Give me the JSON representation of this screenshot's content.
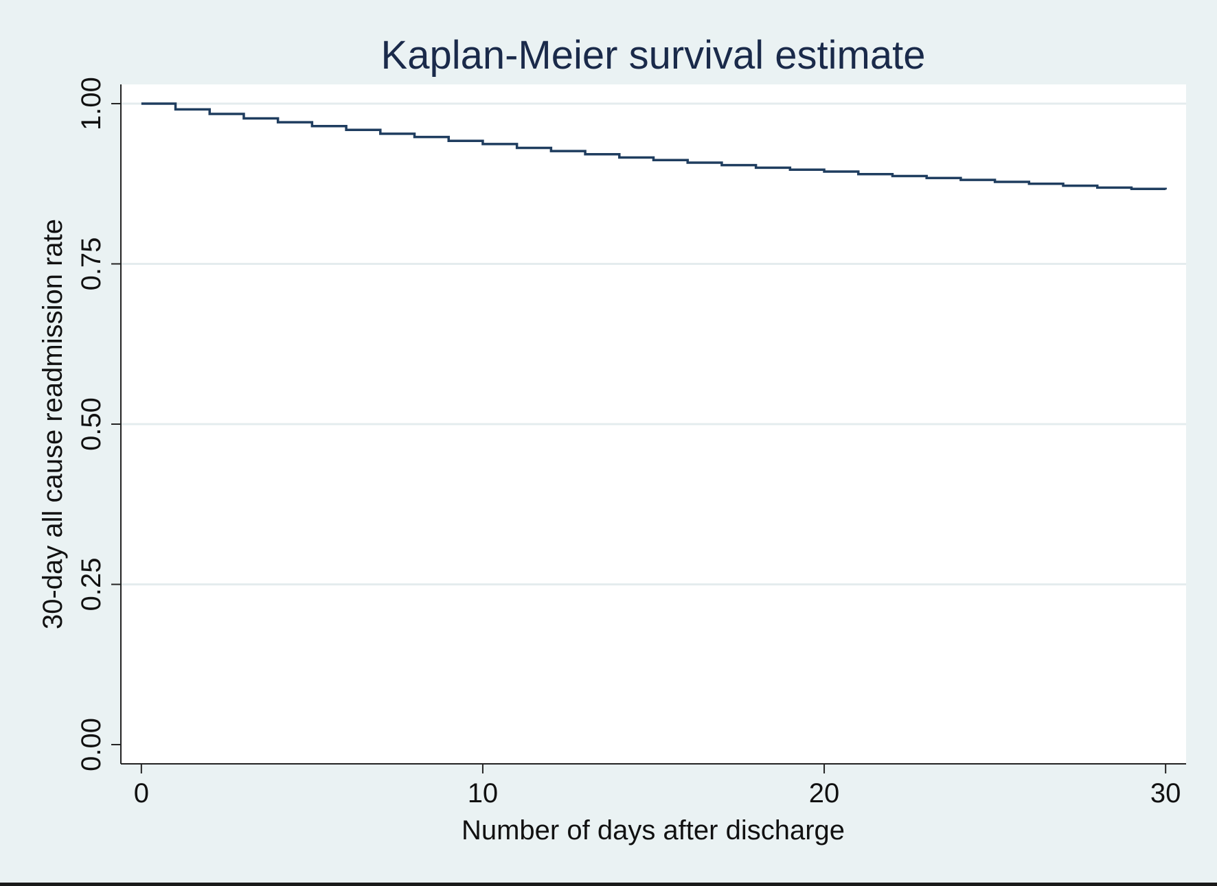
{
  "chart_data": {
    "type": "line",
    "title": "Kaplan-Meier survival estimate",
    "xlabel": "Number of days after discharge",
    "ylabel": "30-day all cause readmission rate",
    "xlim": [
      -0.6,
      30.6
    ],
    "ylim": [
      -0.03,
      1.03
    ],
    "xticks": [
      0,
      10,
      20,
      30
    ],
    "xtick_labels": [
      "0",
      "10",
      "20",
      "30"
    ],
    "yticks": [
      0,
      0.25,
      0.5,
      0.75,
      1.0
    ],
    "ytick_labels": [
      "0.00",
      "0.25",
      "0.50",
      "0.75",
      "1.00"
    ],
    "grid": "horizontal",
    "legend": "none",
    "step": "post",
    "series": [
      {
        "color": "#1f3d5f",
        "x": [
          0,
          1,
          2,
          3,
          4,
          5,
          6,
          7,
          8,
          9,
          10,
          11,
          12,
          13,
          14,
          15,
          16,
          17,
          18,
          19,
          20,
          21,
          22,
          23,
          24,
          25,
          26,
          27,
          28,
          29,
          30
        ],
        "y": [
          1.0,
          0.991,
          0.984,
          0.977,
          0.971,
          0.965,
          0.959,
          0.953,
          0.948,
          0.942,
          0.937,
          0.931,
          0.926,
          0.921,
          0.916,
          0.912,
          0.908,
          0.904,
          0.9,
          0.897,
          0.894,
          0.89,
          0.887,
          0.884,
          0.881,
          0.878,
          0.875,
          0.872,
          0.869,
          0.867,
          0.866
        ]
      }
    ]
  },
  "colors": {
    "page_background": "#eaf2f3",
    "plot_background": "#ffffff",
    "gridline": "#e4ecee",
    "axis": "#222222",
    "title": "#1a2a4a",
    "text": "#111111"
  }
}
